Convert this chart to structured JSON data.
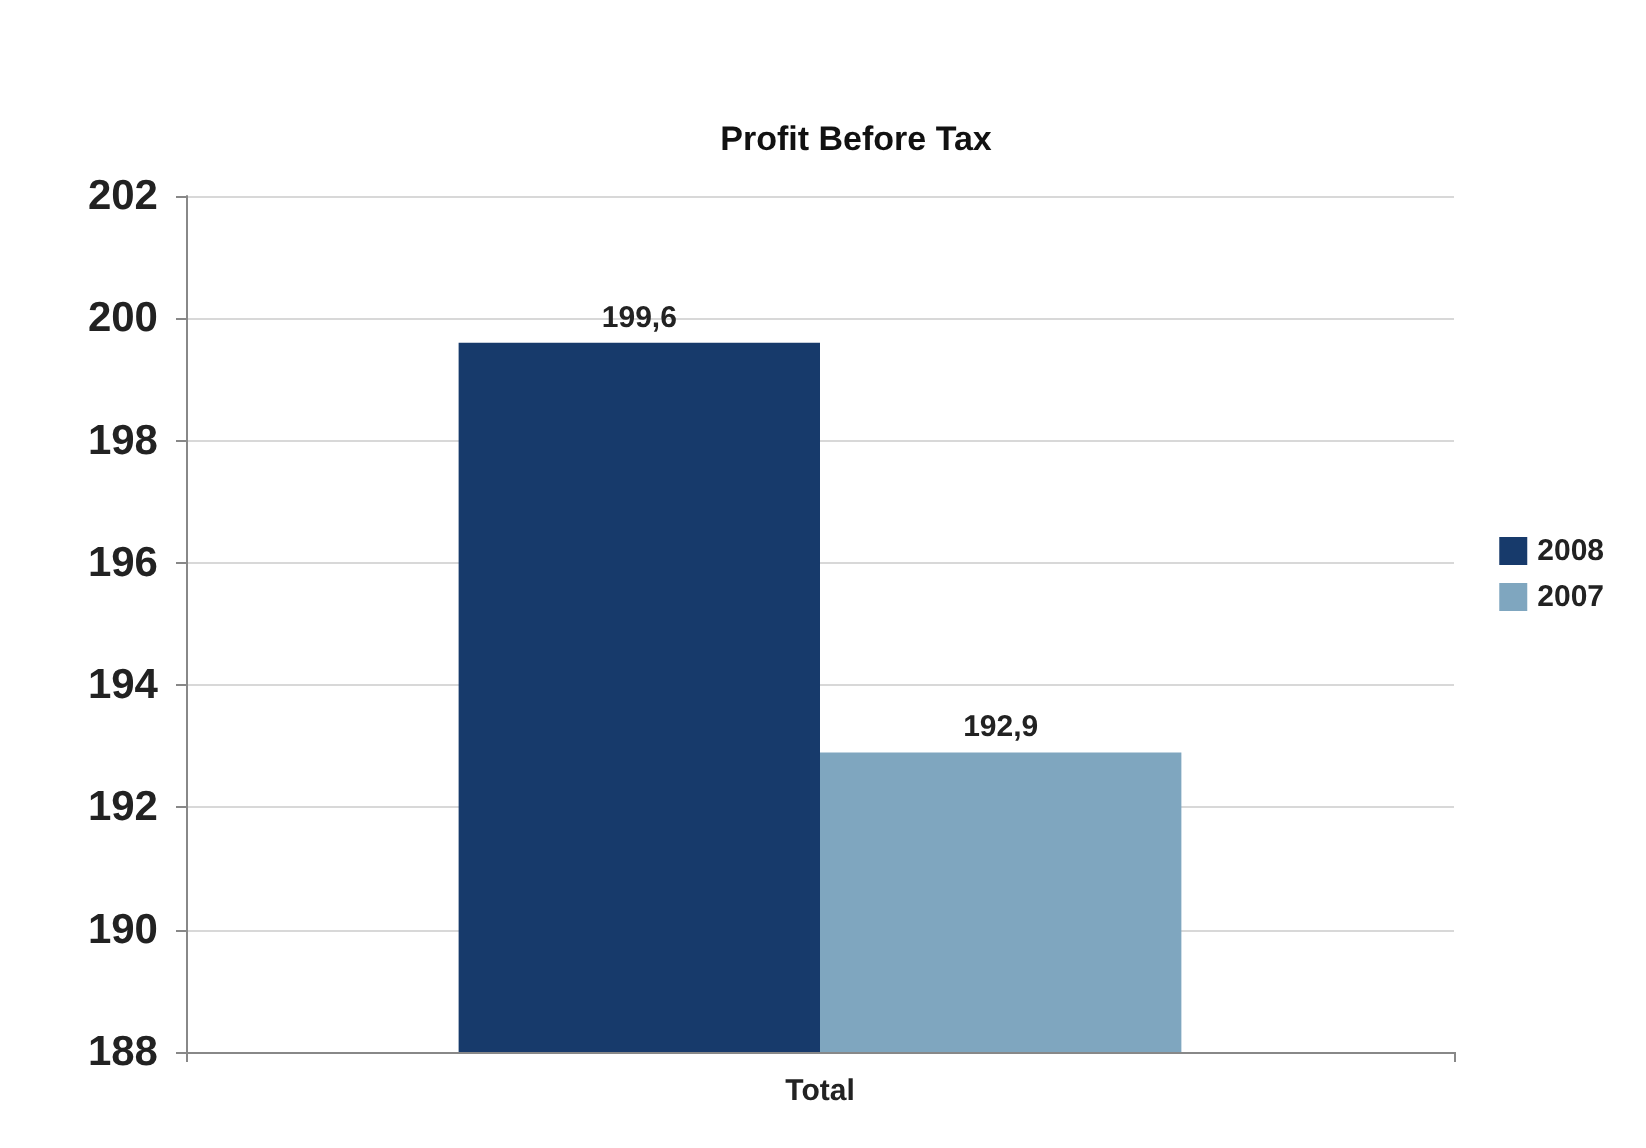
{
  "chart_data": {
    "type": "bar",
    "title": "Profit Before Tax",
    "categories": [
      "Total"
    ],
    "series": [
      {
        "name": "2008",
        "color": "#173a6b",
        "values": [
          199.6
        ],
        "value_labels": [
          "199,6"
        ]
      },
      {
        "name": "2007",
        "color": "#7fa6bf",
        "values": [
          192.9
        ],
        "value_labels": [
          "192,9"
        ]
      }
    ],
    "ylim": [
      188,
      202
    ],
    "yticks": [
      188,
      190,
      192,
      194,
      196,
      198,
      200,
      202
    ],
    "grid": "y",
    "legend": "right"
  }
}
